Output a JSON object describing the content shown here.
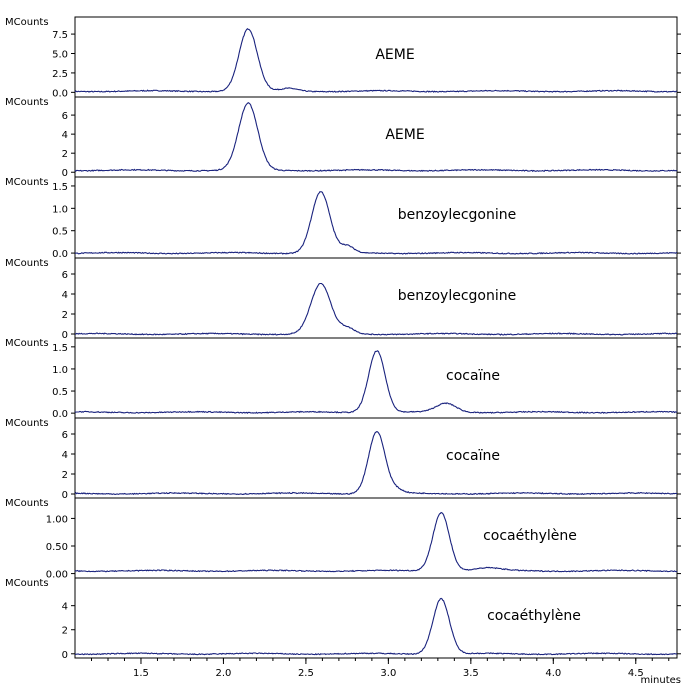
{
  "chart_data": {
    "type": "line",
    "x_unit_label": "minutes",
    "x_range": [
      1.1,
      4.75
    ],
    "x_ticks": [
      "1.5",
      "2.0",
      "2.5",
      "3.0",
      "3.5",
      "4.0",
      "4.5"
    ],
    "y_unit_label": "MCounts",
    "line_color": "#1a237e",
    "panels": [
      {
        "label": "AEME",
        "ylim": [
          -0.6,
          9.7
        ],
        "y_ticks": [
          "7.5",
          "5.0",
          "2.5",
          "0.0"
        ],
        "baseline": 0.15,
        "peaks": [
          {
            "rt": 2.15,
            "height": 8.0,
            "width": 0.055
          }
        ],
        "bumps": [
          {
            "rt": 2.4,
            "height": 0.35,
            "width": 0.05
          }
        ]
      },
      {
        "label": "AEME",
        "ylim": [
          -0.5,
          7.9
        ],
        "y_ticks": [
          "6",
          "4",
          "2",
          "0"
        ],
        "baseline": 0.2,
        "peaks": [
          {
            "rt": 2.15,
            "height": 7.0,
            "width": 0.058
          }
        ],
        "bumps": []
      },
      {
        "label": "benzoylecgonine",
        "ylim": [
          -0.11,
          1.7
        ],
        "y_ticks": [
          "1.5",
          "1.0",
          "0.5",
          "0.0"
        ],
        "baseline": 0.0,
        "peaks": [
          {
            "rt": 2.59,
            "height": 1.37,
            "width": 0.055
          }
        ],
        "bumps": [
          {
            "rt": 2.75,
            "height": 0.15,
            "width": 0.04
          }
        ]
      },
      {
        "label": "benzoylecgonine",
        "ylim": [
          -0.4,
          7.6
        ],
        "y_ticks": [
          "6",
          "4",
          "2",
          "0"
        ],
        "baseline": 0.0,
        "peaks": [
          {
            "rt": 2.59,
            "height": 5.0,
            "width": 0.06
          }
        ],
        "bumps": [
          {
            "rt": 2.75,
            "height": 0.6,
            "width": 0.045
          }
        ]
      },
      {
        "label": "cocaïne",
        "ylim": [
          -0.11,
          1.7
        ],
        "y_ticks": [
          "1.5",
          "1.0",
          "0.5",
          "0.0"
        ],
        "baseline": 0.02,
        "peaks": [
          {
            "rt": 2.93,
            "height": 1.4,
            "width": 0.05
          }
        ],
        "bumps": [
          {
            "rt": 3.35,
            "height": 0.2,
            "width": 0.06
          }
        ]
      },
      {
        "label": "cocaïne",
        "ylim": [
          -0.4,
          7.6
        ],
        "y_ticks": [
          "6",
          "4",
          "2",
          "0"
        ],
        "baseline": 0.05,
        "peaks": [
          {
            "rt": 2.93,
            "height": 6.2,
            "width": 0.05
          }
        ],
        "bumps": [
          {
            "rt": 3.05,
            "height": 0.35,
            "width": 0.04
          }
        ]
      },
      {
        "label": "cocaéthylène",
        "ylim": [
          -0.08,
          1.37
        ],
        "y_ticks": [
          "1.00",
          "0.50",
          "0.00"
        ],
        "baseline": 0.05,
        "peaks": [
          {
            "rt": 3.32,
            "height": 1.06,
            "width": 0.05
          }
        ],
        "bumps": [
          {
            "rt": 3.6,
            "height": 0.05,
            "width": 0.08
          }
        ]
      },
      {
        "label": "cocaéthylène",
        "ylim": [
          -0.35,
          6.3
        ],
        "y_ticks": [
          "4",
          "2",
          "0"
        ],
        "baseline": 0.0,
        "peaks": [
          {
            "rt": 3.32,
            "height": 4.6,
            "width": 0.05
          }
        ],
        "bumps": []
      }
    ]
  }
}
